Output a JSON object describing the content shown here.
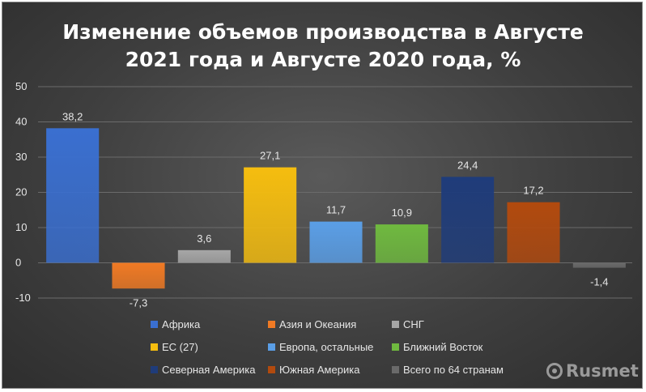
{
  "chart_data": {
    "type": "bar",
    "title_line1": "Изменение объемов производства в Августе",
    "title_line2": "2021 года и Августе 2020 года, %",
    "categories": [
      "Африка",
      "Азия и Океания",
      "СНГ",
      "ЕС (27)",
      "Европа, остальные",
      "Ближний Восток",
      "Северная Америка",
      "Южная Америка",
      "Всего по 64 странам"
    ],
    "values": [
      38.2,
      -7.3,
      3.6,
      27.1,
      11.7,
      10.9,
      24.4,
      17.2,
      -1.4
    ],
    "value_labels": [
      "38,2",
      "-7,3",
      "3,6",
      "27,1",
      "11,7",
      "10,9",
      "24,4",
      "17,2",
      "-1,4"
    ],
    "colors": [
      "#3a6fd0",
      "#f07a24",
      "#a6a6a6",
      "#f5bd0f",
      "#5a9ee6",
      "#6fb93f",
      "#1f3c7a",
      "#b24a0e",
      "#6a6a6a"
    ],
    "ylim": [
      -10,
      50
    ],
    "yticks": [
      -10,
      0,
      10,
      20,
      30,
      40,
      50
    ],
    "grid": true,
    "legend_position": "bottom"
  },
  "legend": [
    {
      "label": "Африка",
      "color": "#3a6fd0"
    },
    {
      "label": "Азия и Океания",
      "color": "#f07a24"
    },
    {
      "label": "СНГ",
      "color": "#a6a6a6"
    },
    {
      "label": "ЕС (27)",
      "color": "#f5bd0f"
    },
    {
      "label": "Европа, остальные",
      "color": "#5a9ee6"
    },
    {
      "label": "Ближний Восток",
      "color": "#6fb93f"
    },
    {
      "label": "Северная Америка",
      "color": "#1f3c7a"
    },
    {
      "label": "Южная Америка",
      "color": "#b24a0e"
    },
    {
      "label": "Всего по 64 странам",
      "color": "#6a6a6a"
    }
  ],
  "watermark": {
    "text": "Rusmet",
    "icon": "rusmet-logo-icon"
  }
}
